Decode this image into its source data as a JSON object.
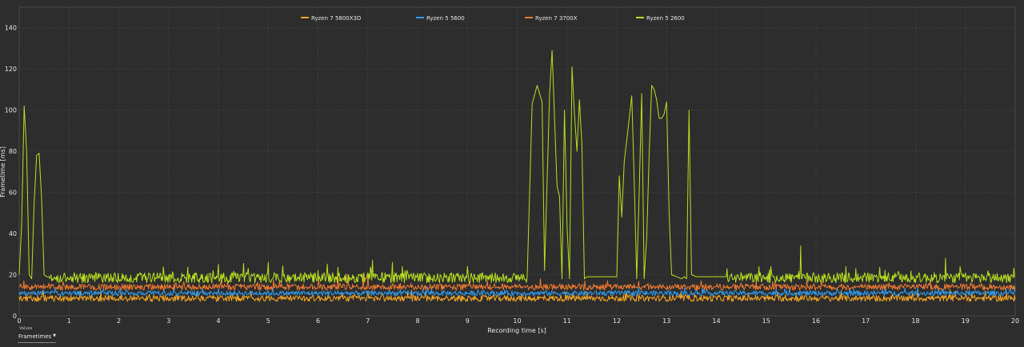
{
  "chart_data": {
    "type": "line",
    "title": "",
    "xlabel": "Recording time [s]",
    "ylabel": "Frametime [ms]",
    "xlim": [
      0,
      20
    ],
    "ylim": [
      0,
      150
    ],
    "xticks": [
      0,
      1,
      2,
      3,
      4,
      5,
      6,
      7,
      8,
      9,
      10,
      11,
      12,
      13,
      14,
      15,
      16,
      17,
      18,
      19,
      20
    ],
    "yticks": [
      0,
      20,
      40,
      60,
      80,
      100,
      120,
      140
    ],
    "grid": true,
    "legend_position": "top-center",
    "series": [
      {
        "name": "Ryzen 7 5800X3D",
        "color": "#f5a623",
        "baseline": 8.5,
        "noise": 1.5,
        "spikes": [
          [
            6.5,
            11
          ],
          [
            7.0,
            12
          ],
          [
            7.3,
            11
          ],
          [
            12.2,
            11
          ],
          [
            15.6,
            11
          ],
          [
            18.8,
            12
          ],
          [
            19.4,
            12
          ]
        ],
        "dips": [],
        "x": [],
        "y": []
      },
      {
        "name": "Ryzen 5 5600",
        "color": "#2f9cf0",
        "baseline": 11,
        "noise": 1.2,
        "spikes": [
          [
            3.1,
            14
          ],
          [
            5.1,
            14
          ],
          [
            8.2,
            14
          ],
          [
            13.6,
            14
          ],
          [
            17.4,
            14
          ],
          [
            19.9,
            13
          ]
        ],
        "dips": [],
        "x": [],
        "y": []
      },
      {
        "name": "Ryzen 7 3700X",
        "color": "#f07a30",
        "baseline": 14,
        "noise": 1.5,
        "spikes": [
          [
            0.1,
            17
          ],
          [
            6.4,
            20
          ],
          [
            6.6,
            20
          ],
          [
            6.9,
            20
          ],
          [
            7.0,
            21
          ],
          [
            9.4,
            17
          ],
          [
            13.7,
            17
          ],
          [
            14.8,
            17
          ],
          [
            16.1,
            17
          ],
          [
            18.3,
            17
          ],
          [
            19.1,
            16
          ]
        ],
        "dips": [],
        "x": [],
        "y": []
      },
      {
        "name": "Ryzen 5 2600",
        "color": "#b8e020",
        "baseline": 18.5,
        "noise": 2.5,
        "x": [
          0.0,
          0.05,
          0.1,
          0.15,
          0.2,
          0.25,
          0.3,
          0.35,
          0.4,
          0.45,
          0.5,
          0.55,
          0.6,
          10.2,
          10.3,
          10.4,
          10.5,
          10.55,
          10.65,
          10.7,
          10.8,
          10.85,
          10.9,
          10.95,
          11.0,
          11.05,
          11.1,
          11.15,
          11.2,
          11.25,
          11.3,
          11.35,
          11.4,
          11.5,
          12.0,
          12.05,
          12.1,
          12.15,
          12.2,
          12.3,
          12.35,
          12.4,
          12.45,
          12.5,
          12.55,
          12.6,
          12.65,
          12.7,
          12.75,
          12.8,
          12.85,
          12.9,
          12.95,
          13.0,
          13.05,
          13.1,
          13.2,
          13.3,
          13.35,
          13.4,
          13.45,
          13.5,
          13.6,
          13.65,
          13.7,
          13.8,
          13.9,
          14.0,
          14.05,
          14.1,
          14.15,
          14.2
        ],
        "y": [
          20,
          45,
          102,
          80,
          20,
          18,
          55,
          78,
          79,
          57,
          20,
          19,
          19,
          19,
          103,
          112,
          104,
          22,
          108,
          129,
          63,
          58,
          18,
          100,
          44,
          18,
          121,
          98,
          80,
          105,
          83,
          18,
          19,
          19,
          19,
          68,
          48,
          75,
          85,
          107,
          65,
          18,
          60,
          108,
          18,
          38,
          79,
          112,
          110,
          105,
          96,
          96,
          98,
          104,
          50,
          20,
          19,
          18,
          19,
          18,
          100,
          20,
          19,
          19,
          19,
          19,
          19,
          19,
          19,
          19,
          19,
          19
        ],
        "spikes": [
          [
            0.65,
            17
          ],
          [
            1.1,
            21
          ],
          [
            1.7,
            19
          ],
          [
            3.9,
            22
          ],
          [
            4.0,
            25
          ],
          [
            4.6,
            23
          ],
          [
            5.0,
            26
          ],
          [
            6.0,
            22
          ],
          [
            7.1,
            27
          ],
          [
            7.5,
            26
          ],
          [
            7.7,
            24
          ],
          [
            9.0,
            24
          ],
          [
            15.1,
            24
          ],
          [
            15.7,
            34
          ],
          [
            16.6,
            24
          ],
          [
            16.8,
            23
          ],
          [
            18.6,
            28
          ],
          [
            18.9,
            24
          ]
        ],
        "dips": []
      }
    ]
  },
  "controls": {
    "values_caption": "Values",
    "dropdown_value": "Frametimes",
    "dropdown_icon": "chevron-down-icon"
  }
}
